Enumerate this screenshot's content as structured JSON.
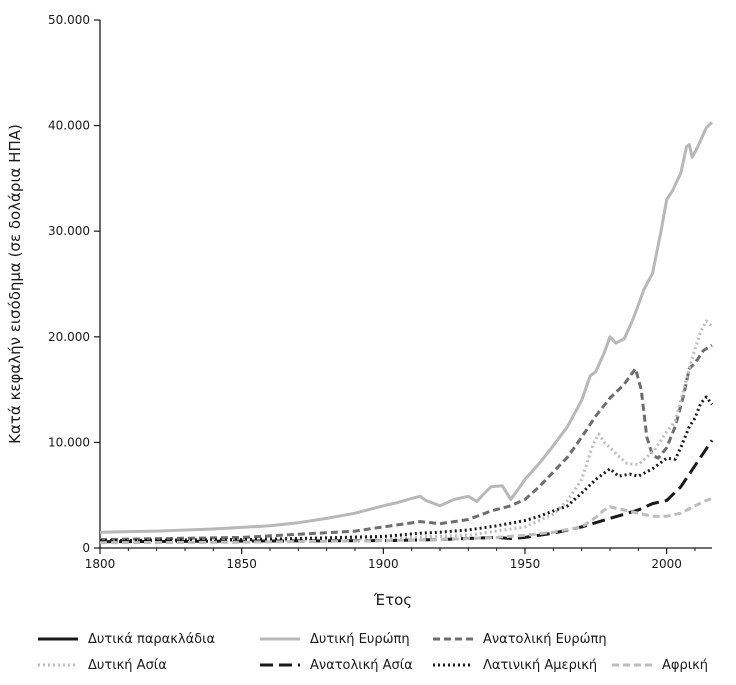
{
  "chart_data": {
    "type": "line",
    "title": "",
    "xlabel": "Έτος",
    "ylabel": "Κατά κεφαλήν εισόδημα (σε δολάρια ΗΠΑ)",
    "xlim": [
      1800,
      2016
    ],
    "ylim": [
      0,
      50000
    ],
    "x_ticks": [
      1800,
      1850,
      1900,
      1950,
      2000
    ],
    "x_tick_labels": [
      "1800",
      "1850",
      "1900",
      "1950",
      "2000"
    ],
    "y_ticks": [
      0,
      10000,
      20000,
      30000,
      40000,
      50000
    ],
    "y_tick_labels": [
      "0",
      "10.000",
      "20.000",
      "30.000",
      "40.000",
      "50.000"
    ],
    "grid": false,
    "legend_position": "bottom",
    "series": [
      {
        "name": "Δυτικά παρακλάδια",
        "color": "#1a1a1a",
        "dash": "solid",
        "points": []
      },
      {
        "name": "Δυτική Ευρώπη",
        "color": "#b8b8b8",
        "dash": "solid",
        "points": [
          [
            1800,
            1500
          ],
          [
            1820,
            1600
          ],
          [
            1840,
            1800
          ],
          [
            1850,
            1950
          ],
          [
            1860,
            2100
          ],
          [
            1870,
            2400
          ],
          [
            1880,
            2800
          ],
          [
            1890,
            3300
          ],
          [
            1900,
            4000
          ],
          [
            1905,
            4300
          ],
          [
            1910,
            4700
          ],
          [
            1913,
            4900
          ],
          [
            1915,
            4500
          ],
          [
            1918,
            4200
          ],
          [
            1920,
            4000
          ],
          [
            1925,
            4600
          ],
          [
            1930,
            4900
          ],
          [
            1933,
            4400
          ],
          [
            1935,
            5000
          ],
          [
            1938,
            5800
          ],
          [
            1942,
            5900
          ],
          [
            1945,
            4600
          ],
          [
            1948,
            5700
          ],
          [
            1950,
            6500
          ],
          [
            1955,
            8000
          ],
          [
            1960,
            9700
          ],
          [
            1965,
            11500
          ],
          [
            1970,
            14000
          ],
          [
            1973,
            16300
          ],
          [
            1975,
            16700
          ],
          [
            1978,
            18500
          ],
          [
            1980,
            20000
          ],
          [
            1982,
            19400
          ],
          [
            1985,
            19800
          ],
          [
            1988,
            21600
          ],
          [
            1990,
            23000
          ],
          [
            1992,
            24500
          ],
          [
            1995,
            26000
          ],
          [
            1998,
            30000
          ],
          [
            2000,
            33000
          ],
          [
            2002,
            33800
          ],
          [
            2005,
            35500
          ],
          [
            2007,
            38000
          ],
          [
            2008,
            38200
          ],
          [
            2009,
            37000
          ],
          [
            2011,
            38000
          ],
          [
            2014,
            39800
          ],
          [
            2016,
            40300
          ]
        ]
      },
      {
        "name": "Ανατολική Ευρώπη",
        "color": "#6e6e6e",
        "dash": "dash",
        "points": [
          [
            1800,
            800
          ],
          [
            1850,
            1000
          ],
          [
            1870,
            1300
          ],
          [
            1890,
            1600
          ],
          [
            1900,
            2000
          ],
          [
            1913,
            2500
          ],
          [
            1920,
            2300
          ],
          [
            1930,
            2700
          ],
          [
            1938,
            3500
          ],
          [
            1945,
            4000
          ],
          [
            1950,
            4600
          ],
          [
            1955,
            5800
          ],
          [
            1960,
            7200
          ],
          [
            1965,
            8600
          ],
          [
            1970,
            10500
          ],
          [
            1975,
            12500
          ],
          [
            1980,
            14200
          ],
          [
            1985,
            15500
          ],
          [
            1989,
            17000
          ],
          [
            1991,
            15000
          ],
          [
            1993,
            10500
          ],
          [
            1995,
            8800
          ],
          [
            1997,
            8500
          ],
          [
            2000,
            9500
          ],
          [
            2003,
            11500
          ],
          [
            2006,
            14500
          ],
          [
            2008,
            17000
          ],
          [
            2010,
            17500
          ],
          [
            2013,
            18700
          ],
          [
            2016,
            19200
          ]
        ]
      },
      {
        "name": "Δυτική Ασία",
        "color": "#bdbdbd",
        "dash": "dot",
        "points": [
          [
            1800,
            600
          ],
          [
            1850,
            700
          ],
          [
            1900,
            900
          ],
          [
            1930,
            1200
          ],
          [
            1950,
            2000
          ],
          [
            1960,
            3200
          ],
          [
            1965,
            4500
          ],
          [
            1970,
            6500
          ],
          [
            1974,
            9800
          ],
          [
            1976,
            10800
          ],
          [
            1978,
            10000
          ],
          [
            1980,
            9500
          ],
          [
            1983,
            8700
          ],
          [
            1986,
            8000
          ],
          [
            1990,
            7900
          ],
          [
            1993,
            8600
          ],
          [
            1996,
            9400
          ],
          [
            2000,
            11000
          ],
          [
            2003,
            12000
          ],
          [
            2006,
            15000
          ],
          [
            2009,
            18000
          ],
          [
            2012,
            20500
          ],
          [
            2014,
            21500
          ],
          [
            2016,
            21000
          ]
        ]
      },
      {
        "name": "Ανατολική Ασία",
        "color": "#1a1a1a",
        "dash": "longdash",
        "points": [
          [
            1800,
            600
          ],
          [
            1850,
            650
          ],
          [
            1900,
            700
          ],
          [
            1920,
            800
          ],
          [
            1940,
            1000
          ],
          [
            1945,
            900
          ],
          [
            1950,
            1000
          ],
          [
            1960,
            1400
          ],
          [
            1970,
            2000
          ],
          [
            1980,
            2800
          ],
          [
            1990,
            3600
          ],
          [
            1995,
            4200
          ],
          [
            2000,
            4500
          ],
          [
            2005,
            5800
          ],
          [
            2010,
            7800
          ],
          [
            2016,
            10200
          ]
        ]
      },
      {
        "name": "Λατινική Αμερική",
        "color": "#1a1a1a",
        "dash": "dot",
        "points": [
          [
            1800,
            700
          ],
          [
            1850,
            800
          ],
          [
            1870,
            900
          ],
          [
            1900,
            1100
          ],
          [
            1913,
            1400
          ],
          [
            1920,
            1500
          ],
          [
            1930,
            1700
          ],
          [
            1940,
            2100
          ],
          [
            1950,
            2600
          ],
          [
            1955,
            3000
          ],
          [
            1960,
            3500
          ],
          [
            1965,
            4000
          ],
          [
            1970,
            5200
          ],
          [
            1975,
            6500
          ],
          [
            1980,
            7500
          ],
          [
            1983,
            6800
          ],
          [
            1987,
            7000
          ],
          [
            1990,
            6800
          ],
          [
            1995,
            7500
          ],
          [
            2000,
            8500
          ],
          [
            2003,
            8400
          ],
          [
            2005,
            9500
          ],
          [
            2008,
            11500
          ],
          [
            2010,
            12300
          ],
          [
            2012,
            13700
          ],
          [
            2014,
            14300
          ],
          [
            2016,
            13600
          ]
        ]
      },
      {
        "name": "Αφρική",
        "color": "#bdbdbd",
        "dash": "dash",
        "points": [
          [
            1800,
            500
          ],
          [
            1850,
            550
          ],
          [
            1900,
            700
          ],
          [
            1920,
            800
          ],
          [
            1940,
            1000
          ],
          [
            1950,
            1200
          ],
          [
            1960,
            1500
          ],
          [
            1970,
            2000
          ],
          [
            1975,
            2900
          ],
          [
            1978,
            3600
          ],
          [
            1980,
            3900
          ],
          [
            1985,
            3600
          ],
          [
            1990,
            3300
          ],
          [
            1995,
            3000
          ],
          [
            2000,
            3000
          ],
          [
            2005,
            3300
          ],
          [
            2010,
            4000
          ],
          [
            2014,
            4500
          ],
          [
            2016,
            4700
          ]
        ]
      }
    ]
  }
}
